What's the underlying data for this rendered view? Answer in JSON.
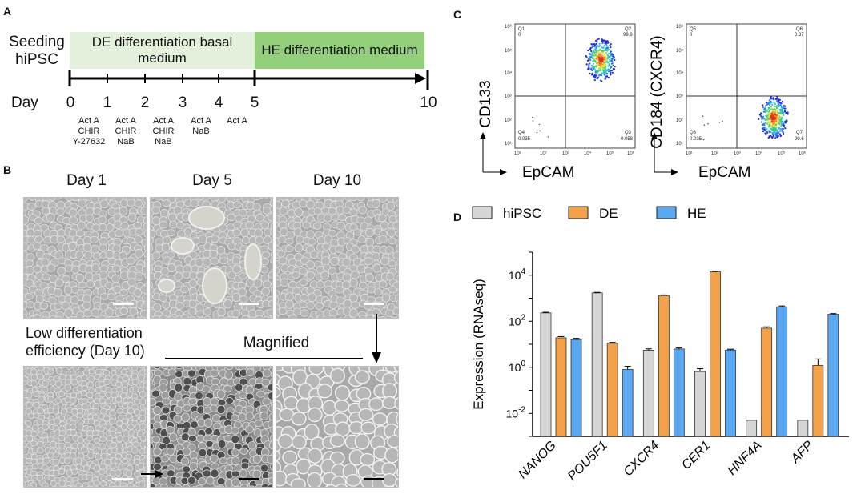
{
  "panels": {
    "a": "A",
    "b": "B",
    "c": "C",
    "d": "D"
  },
  "timeline": {
    "seeding": "Seeding hiPSC",
    "de_phase": "DE differentiation basal medium",
    "he_phase": "HE differentiation medium",
    "day_label": "Day",
    "ticks": [
      "0",
      "1",
      "2",
      "3",
      "4",
      "5",
      "10"
    ],
    "notes": [
      "Act A\nCHIR\nY-27632",
      "Act A\nCHIR\nNaB",
      "Act A\nCHIR\nNaB",
      "Act A\nNaB",
      "Act A"
    ],
    "colors": {
      "de": "#e3f1dc",
      "he": "#94cf7c"
    }
  },
  "micrographs": {
    "titles": [
      "Day 1",
      "Day 5",
      "Day 10"
    ],
    "low_eff": "Low differentiation efficiency (Day 10)",
    "magnified": "Magnified"
  },
  "facs": {
    "left": {
      "ylabel": "CD133",
      "xlabel": "EpCAM",
      "quadrants": {
        "Q1": "0",
        "Q2": "99.9",
        "Q3": "0.058",
        "Q4": "0.035"
      }
    },
    "right": {
      "ylabel": "CD184 (CXCR4)",
      "xlabel": "EpCAM",
      "quadrants": {
        "Q5": "0",
        "Q6": "0.37",
        "Q7": "99.6",
        "Q8": "0.035"
      }
    },
    "quad_names_left": [
      "Q1",
      "Q2",
      "Q3",
      "Q4"
    ],
    "quad_names_right": [
      "Q5",
      "Q6",
      "Q7",
      "Q8"
    ]
  },
  "chart_data": {
    "type": "bar",
    "ylabel": "Expression (RNAseq)",
    "yscale": "log",
    "ylim": [
      0.001,
      100000
    ],
    "ytick_labels": [
      "10-2",
      "100",
      "102",
      "104"
    ],
    "categories": [
      "NANOG",
      "POU5F1",
      "CXCR4",
      "CER1",
      "HNF4A",
      "AFP"
    ],
    "legend_position": "top",
    "series": [
      {
        "name": "hiPSC",
        "color": "#d6d6d6",
        "values": [
          230,
          1700,
          5.5,
          0.65,
          0.005,
          0.005
        ],
        "err": [
          15,
          90,
          0.8,
          0.22,
          0,
          0
        ]
      },
      {
        "name": "DE",
        "color": "#f4a24a",
        "values": [
          19,
          11,
          1300,
          14000,
          50,
          1.2
        ],
        "err": [
          2.5,
          1,
          90,
          900,
          7,
          1.1
        ]
      },
      {
        "name": "HE",
        "color": "#5aa7f2",
        "values": [
          16,
          0.8,
          6.2,
          5.6,
          420,
          200
        ],
        "err": [
          2,
          0.3,
          0.7,
          0.5,
          40,
          15
        ]
      }
    ]
  }
}
